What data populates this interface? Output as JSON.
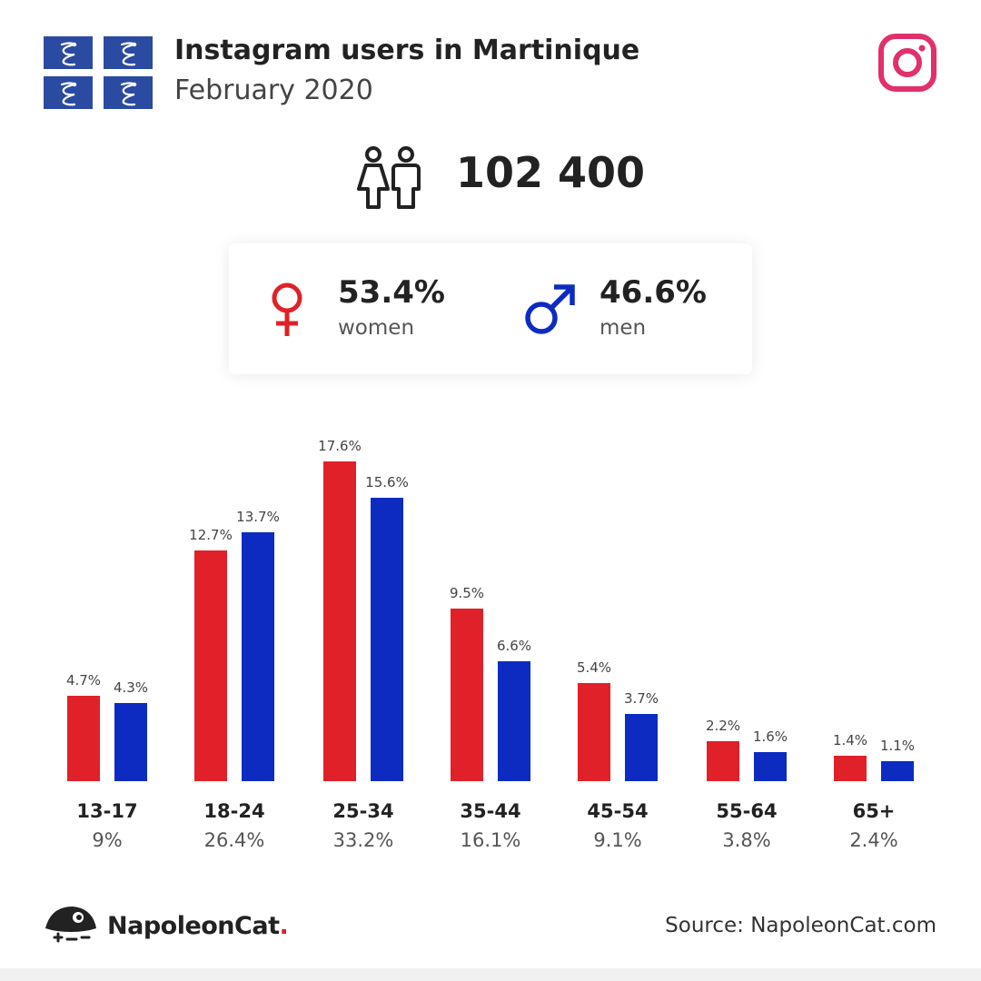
{
  "header": {
    "title": "Instagram users in Martinique",
    "subtitle": "February 2020"
  },
  "total_users": "102 400",
  "gender": {
    "women": {
      "percent": "53.4%",
      "label": "women",
      "color": "#e0212a"
    },
    "men": {
      "percent": "46.6%",
      "label": "men",
      "color": "#0e2bc1"
    }
  },
  "chart_data": {
    "type": "bar",
    "categories": [
      "13-17",
      "18-24",
      "25-34",
      "35-44",
      "45-54",
      "55-64",
      "65+"
    ],
    "category_totals": [
      "9%",
      "26.4%",
      "33.2%",
      "16.1%",
      "9.1%",
      "3.8%",
      "2.4%"
    ],
    "series": [
      {
        "name": "women",
        "color": "#e0212a",
        "values": [
          4.7,
          12.7,
          17.6,
          9.5,
          5.4,
          2.2,
          1.4
        ],
        "labels": [
          "4.7%",
          "12.7%",
          "17.6%",
          "9.5%",
          "5.4%",
          "2.2%",
          "1.4%"
        ]
      },
      {
        "name": "men",
        "color": "#0e2bc1",
        "values": [
          4.3,
          13.7,
          15.6,
          6.6,
          3.7,
          1.6,
          1.1
        ],
        "labels": [
          "4.3%",
          "13.7%",
          "15.6%",
          "6.6%",
          "3.7%",
          "1.6%",
          "1.1%"
        ]
      }
    ],
    "title": "",
    "xlabel": "",
    "ylabel": "",
    "ylim": [
      0,
      17.6
    ],
    "grid": false
  },
  "footer": {
    "brand_name": "NapoleonCat",
    "brand_dot": ".",
    "source": "Source: NapoleonCat.com"
  },
  "icons": {
    "flag": "martinique-flag-icon",
    "instagram": "instagram-icon",
    "users": "users-icon",
    "female": "female-symbol-icon",
    "male": "male-symbol-icon",
    "logo": "napoleoncat-logo-icon"
  },
  "colors": {
    "flag_blue": "#2b4aa2",
    "instagram": "#e1306c"
  }
}
